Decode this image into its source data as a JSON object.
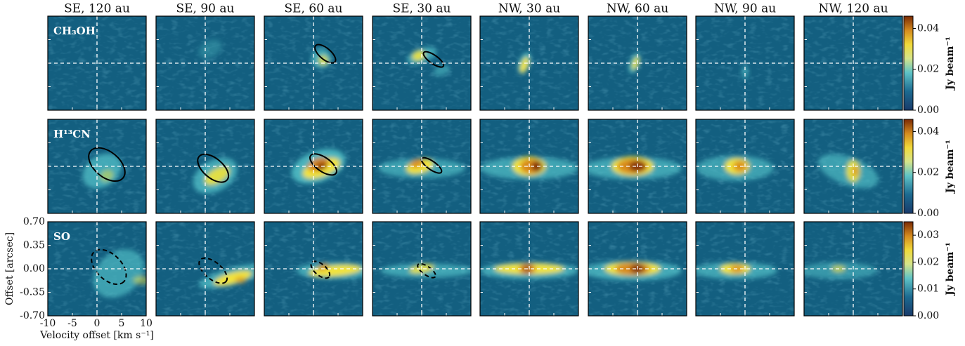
{
  "chart_data": {
    "type": "pv-grid",
    "columns": [
      "SE, 120 au",
      "SE, 90 au",
      "SE, 60 au",
      "SE, 30 au",
      "NW, 30 au",
      "NW, 60 au",
      "NW, 90 au",
      "NW, 120 au"
    ],
    "rows": [
      {
        "label": "CH₃OH",
        "colorbar": {
          "label": "Jy beam⁻¹",
          "lim": [
            0,
            0.046
          ],
          "ticks": [
            {
              "value": 0,
              "label": "0.00"
            },
            {
              "value": 0.02,
              "label": "0.02"
            },
            {
              "value": 0.04,
              "label": "0.04"
            }
          ]
        }
      },
      {
        "label": "H¹³CN",
        "colorbar": {
          "label": "Jy beam⁻¹",
          "lim": [
            0,
            0.046
          ],
          "ticks": [
            {
              "value": 0,
              "label": "0.00"
            },
            {
              "value": 0.02,
              "label": "0.02"
            },
            {
              "value": 0.04,
              "label": "0.04"
            }
          ]
        }
      },
      {
        "label": "SO",
        "colorbar": {
          "label": "Jy beam⁻¹",
          "lim": [
            0,
            0.035
          ],
          "ticks": [
            {
              "value": 0,
              "label": "0.00"
            },
            {
              "value": 0.01,
              "label": "0.01"
            },
            {
              "value": 0.02,
              "label": "0.02"
            },
            {
              "value": 0.03,
              "label": "0.03"
            }
          ]
        }
      }
    ],
    "xlabel": "Velocity offset [km s⁻¹]",
    "ylabel": "Offset [arcsec]",
    "xlim": [
      -10,
      10
    ],
    "xticks": [
      -10,
      -5,
      0,
      5,
      10
    ],
    "ylim": [
      -0.7,
      0.7
    ],
    "yticks": [
      {
        "value": 0.7,
        "label": "0.70"
      },
      {
        "value": 0.35,
        "label": "0.35"
      },
      {
        "value": 0,
        "label": "0.00"
      },
      {
        "value": -0.35,
        "label": "-0.35"
      },
      {
        "value": -0.7,
        "label": "-0.70"
      }
    ]
  }
}
